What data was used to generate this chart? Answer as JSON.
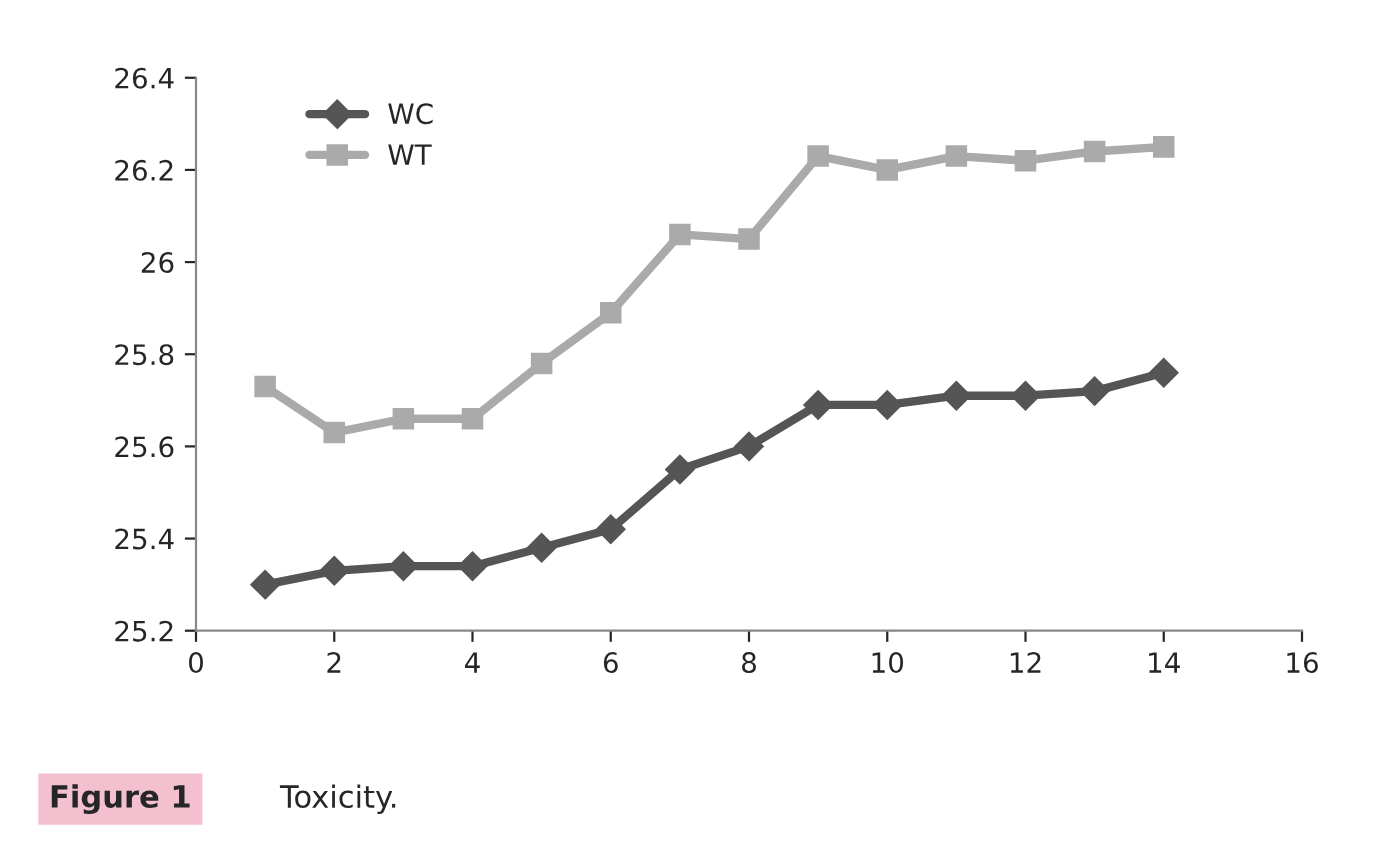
{
  "chart_data": {
    "type": "line",
    "x": [
      1,
      2,
      3,
      4,
      5,
      6,
      7,
      8,
      9,
      10,
      11,
      12,
      13,
      14
    ],
    "series": [
      {
        "name": "WC",
        "color": "#555555",
        "marker": "diamond",
        "values": [
          25.3,
          25.33,
          25.34,
          25.34,
          25.38,
          25.42,
          25.55,
          25.6,
          25.69,
          25.69,
          25.71,
          25.71,
          25.72,
          25.76
        ]
      },
      {
        "name": "WT",
        "color": "#aaaaaa",
        "marker": "square",
        "values": [
          25.73,
          25.63,
          25.66,
          25.66,
          25.78,
          25.89,
          26.06,
          26.05,
          26.23,
          26.2,
          26.23,
          26.22,
          26.24,
          26.25
        ]
      }
    ],
    "xlim": [
      0,
      16
    ],
    "xticks": [
      0,
      2,
      4,
      6,
      8,
      10,
      12,
      14,
      16
    ],
    "ylim": [
      25.2,
      26.4
    ],
    "yticks": [
      {
        "value": 25.2,
        "label": "25.2"
      },
      {
        "value": 25.4,
        "label": "25.4"
      },
      {
        "value": 25.6,
        "label": "25.6"
      },
      {
        "value": 25.8,
        "label": "25.8"
      },
      {
        "value": 26,
        "label": "26"
      },
      {
        "value": 26.2,
        "label": "26.2"
      },
      {
        "value": 26.4,
        "label": "26.4"
      }
    ],
    "grid": false,
    "legend": "top left",
    "line_style": "solid",
    "annotations": [
      "Figure 1",
      "Toxicity."
    ]
  }
}
